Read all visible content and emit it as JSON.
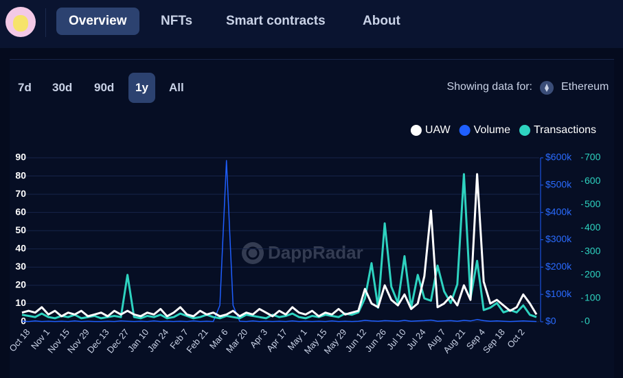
{
  "nav": {
    "tabs": [
      "Overview",
      "NFTs",
      "Smart contracts",
      "About"
    ],
    "active": 0
  },
  "periods": {
    "options": [
      "7d",
      "30d",
      "90d",
      "1y",
      "All"
    ],
    "active": 3
  },
  "network": {
    "label": "Showing data for:",
    "name": "Ethereum"
  },
  "watermark": "DappRadar",
  "chart_data": {
    "type": "line",
    "legend": "top-right",
    "grid": true,
    "categories": [
      null,
      "Oct 18",
      null,
      null,
      "Nov 1",
      null,
      null,
      "Nov 15",
      null,
      null,
      "Nov 29",
      null,
      null,
      "Dec 13",
      null,
      null,
      "Dec 27",
      null,
      null,
      "Jan 10",
      null,
      null,
      "Jan 24",
      null,
      null,
      "Feb 7",
      null,
      null,
      "Feb 21",
      null,
      null,
      "Mar 6",
      null,
      null,
      "Mar 20",
      null,
      null,
      "Apr 3",
      null,
      null,
      "Apr 17",
      null,
      null,
      "May 1",
      null,
      null,
      "May 15",
      null,
      null,
      "May 29",
      null,
      null,
      "Jun 12",
      null,
      null,
      "Jun 26",
      null,
      null,
      "Jul 10",
      null,
      null,
      "Jul 24",
      null,
      null,
      "Aug 7",
      null,
      null,
      "Aug 21",
      null,
      null,
      "Sep 4",
      null,
      null,
      "Sep 18",
      null,
      null,
      "Oct 2",
      null,
      null
    ],
    "ylim": [
      0,
      90
    ],
    "yticks": [
      0,
      10,
      20,
      30,
      40,
      50,
      60,
      70,
      80,
      90
    ],
    "y2lim": [
      0,
      600000
    ],
    "y2ticks": [
      {
        "value": 0,
        "label": "$0"
      },
      {
        "value": 100000,
        "label": "$100k"
      },
      {
        "value": 200000,
        "label": "$200k"
      },
      {
        "value": 300000,
        "label": "$300k"
      },
      {
        "value": 400000,
        "label": "$400k"
      },
      {
        "value": 500000,
        "label": "$500k"
      },
      {
        "value": 600000,
        "label": "$600k"
      }
    ],
    "y3lim": [
      0,
      700
    ],
    "y3ticks": [
      0,
      100,
      200,
      300,
      400,
      500,
      600,
      700
    ],
    "series": [
      {
        "name": "UAW",
        "color": "#ffffff",
        "axis": "y",
        "values": [
          5,
          6,
          5,
          8,
          4,
          6,
          3,
          5,
          4,
          6,
          3,
          4,
          5,
          3,
          6,
          4,
          6,
          4,
          3,
          5,
          4,
          7,
          3,
          5,
          8,
          4,
          3,
          6,
          4,
          5,
          3,
          4,
          6,
          3,
          5,
          4,
          7,
          5,
          3,
          6,
          4,
          8,
          5,
          4,
          6,
          3,
          5,
          4,
          7,
          4,
          5,
          6,
          18,
          10,
          8,
          20,
          12,
          9,
          15,
          7,
          10,
          25,
          61,
          8,
          10,
          14,
          9,
          20,
          12,
          81,
          22,
          10,
          12,
          9,
          6,
          8,
          15,
          10,
          4
        ]
      },
      {
        "name": "Volume",
        "color": "#1f5fff",
        "axis": "y2",
        "values": [
          2000,
          1000,
          3000,
          1000,
          2000,
          1000,
          2000,
          1000,
          3000,
          1000,
          2000,
          1000,
          1000,
          2000,
          1000,
          3000,
          2000,
          1000,
          2000,
          1000,
          3000,
          1000,
          2000,
          1000,
          2000,
          1000,
          3000,
          1000,
          2000,
          1000,
          60000,
          590000,
          60000,
          2000,
          1000,
          3000,
          1000,
          2000,
          1000,
          2000,
          1000,
          3000,
          1000,
          2000,
          1000,
          2000,
          1000,
          3000,
          1000,
          2000,
          1000,
          2000,
          5000,
          3000,
          2000,
          4000,
          3000,
          2000,
          5000,
          2000,
          3000,
          4000,
          6000,
          2000,
          3000,
          4000,
          2000,
          5000,
          3000,
          8000,
          4000,
          2000,
          3000,
          2000,
          1000,
          2000,
          3000,
          2000,
          1000
        ]
      },
      {
        "name": "Transactions",
        "color": "#2ed3c0",
        "axis": "y3",
        "values": [
          30,
          25,
          20,
          35,
          20,
          15,
          25,
          20,
          30,
          15,
          20,
          25,
          15,
          20,
          25,
          20,
          200,
          20,
          15,
          25,
          20,
          30,
          15,
          20,
          35,
          25,
          15,
          20,
          30,
          20,
          15,
          25,
          20,
          15,
          30,
          25,
          20,
          15,
          30,
          20,
          25,
          35,
          20,
          15,
          25,
          20,
          30,
          25,
          20,
          35,
          30,
          40,
          100,
          250,
          60,
          420,
          150,
          80,
          280,
          60,
          200,
          100,
          90,
          240,
          130,
          80,
          160,
          630,
          100,
          260,
          50,
          60,
          80,
          40,
          50,
          40,
          70,
          30,
          20
        ]
      }
    ]
  }
}
